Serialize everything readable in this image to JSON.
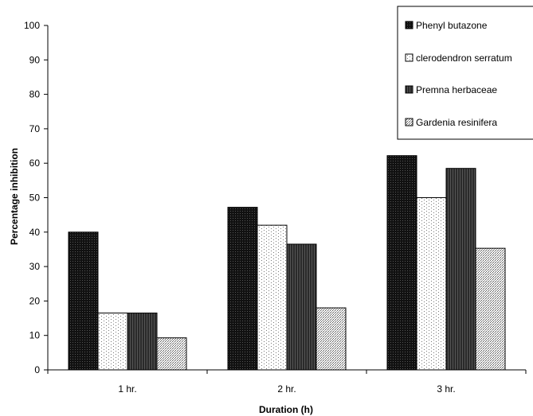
{
  "chart_data": {
    "type": "bar",
    "categories": [
      "1 hr.",
      "2 hr.",
      "3 hr."
    ],
    "series": [
      {
        "name": "Phenyl butazone",
        "values": [
          40,
          47.2,
          62.2
        ],
        "pattern": "pat-phenyl"
      },
      {
        "name": "clerodendron serratum",
        "values": [
          16.5,
          42,
          50
        ],
        "pattern": "pat-clero"
      },
      {
        "name": "Premna herbaceae",
        "values": [
          16.5,
          36.5,
          58.5
        ],
        "pattern": "pat-premna"
      },
      {
        "name": "Gardenia resinifera",
        "values": [
          9.3,
          18,
          35.3
        ],
        "pattern": "pat-gardenia"
      }
    ],
    "xlabel": "Duration (h)",
    "ylabel": "Percentage inhibition",
    "ylim": [
      0,
      100
    ],
    "yticks": [
      0,
      10,
      20,
      30,
      40,
      50,
      60,
      70,
      80,
      90,
      100
    ],
    "grid": false,
    "legend_position": "top-right"
  }
}
